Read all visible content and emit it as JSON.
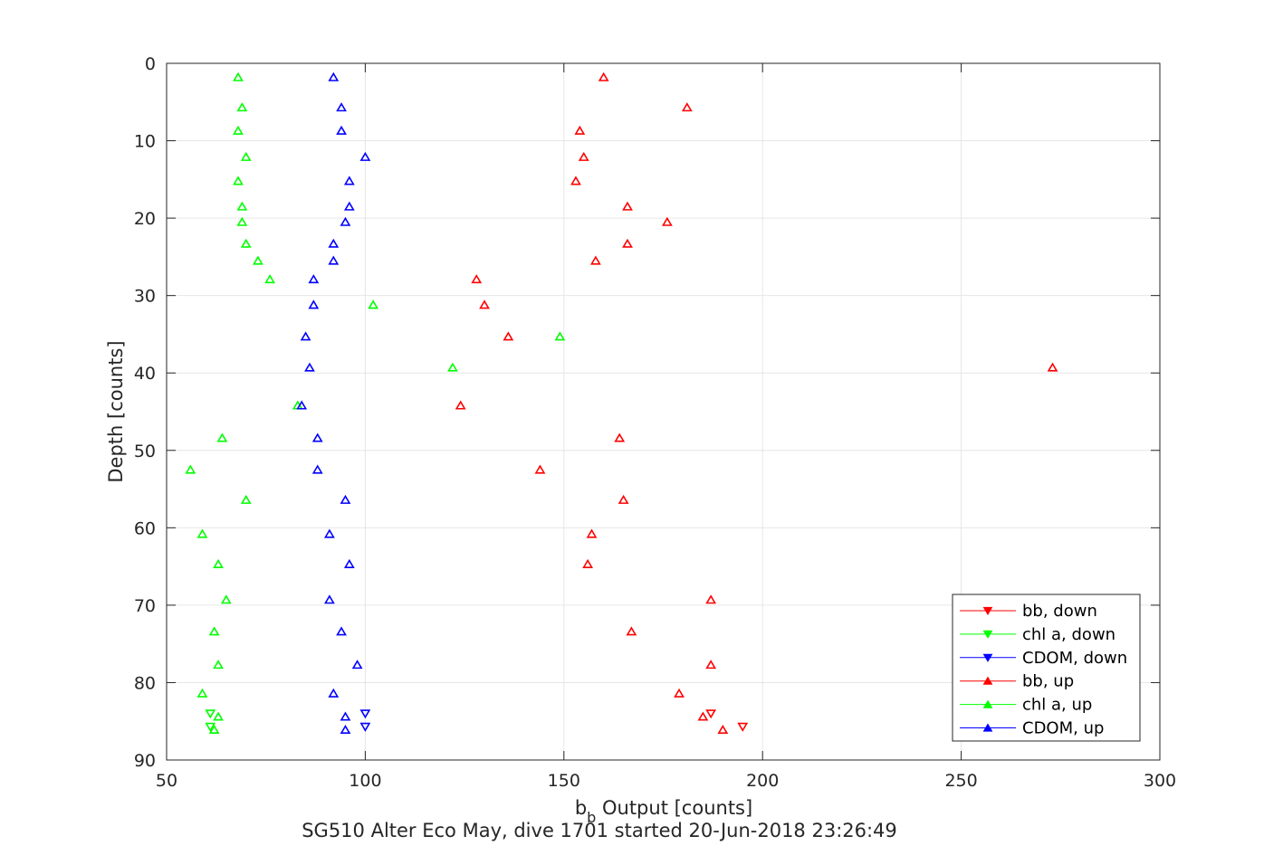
{
  "chart_data": {
    "type": "scatter",
    "title": "",
    "caption": "SG510 Alter Eco May, dive 1701 started 20-Jun-2018 23:26:49",
    "xlabel": {
      "main": "b",
      "sub": "b",
      "rest": " Output [counts]"
    },
    "ylabel": "Depth [counts]",
    "xlim": [
      50,
      300
    ],
    "ylim": [
      0,
      90
    ],
    "y_reversed": true,
    "grid": true,
    "legend_position": "bottom-right",
    "xticks": [
      "50",
      "100",
      "150",
      "200",
      "250",
      "300"
    ],
    "yticks": [
      "0",
      "10",
      "20",
      "30",
      "40",
      "50",
      "60",
      "70",
      "80",
      "90"
    ],
    "series": [
      {
        "name": "bb, down",
        "color": "#ff0000",
        "marker": "triangle-down",
        "points": [
          [
            187,
            84.0
          ],
          [
            195,
            85.7
          ]
        ]
      },
      {
        "name": "chl a, down",
        "color": "#00ff00",
        "marker": "triangle-down",
        "points": [
          [
            61,
            84.0
          ],
          [
            61,
            85.7
          ]
        ]
      },
      {
        "name": "CDOM, down",
        "color": "#0000ff",
        "marker": "triangle-down",
        "points": [
          [
            100,
            84.0
          ],
          [
            100,
            85.7
          ]
        ]
      },
      {
        "name": "bb, up",
        "color": "#ff0000",
        "marker": "triangle-up",
        "points": [
          [
            160,
            1.8
          ],
          [
            181,
            5.7
          ],
          [
            154,
            8.7
          ],
          [
            155,
            12.1
          ],
          [
            153,
            15.2
          ],
          [
            166,
            18.5
          ],
          [
            176,
            20.5
          ],
          [
            166,
            23.3
          ],
          [
            158,
            25.5
          ],
          [
            128,
            27.9
          ],
          [
            130,
            31.2
          ],
          [
            136,
            35.3
          ],
          [
            273,
            39.3
          ],
          [
            124,
            44.2
          ],
          [
            164,
            48.4
          ],
          [
            144,
            52.5
          ],
          [
            165,
            56.4
          ],
          [
            157,
            60.8
          ],
          [
            156,
            64.7
          ],
          [
            187,
            69.3
          ],
          [
            167,
            73.4
          ],
          [
            187,
            77.7
          ],
          [
            179,
            81.4
          ],
          [
            185,
            84.4
          ],
          [
            190,
            86.1
          ]
        ]
      },
      {
        "name": "chl a, up",
        "color": "#00ff00",
        "marker": "triangle-up",
        "points": [
          [
            68,
            1.8
          ],
          [
            69,
            5.7
          ],
          [
            68,
            8.7
          ],
          [
            70,
            12.1
          ],
          [
            68,
            15.2
          ],
          [
            69,
            18.5
          ],
          [
            69,
            20.5
          ],
          [
            70,
            23.3
          ],
          [
            73,
            25.5
          ],
          [
            76,
            27.9
          ],
          [
            102,
            31.2
          ],
          [
            149,
            35.3
          ],
          [
            122,
            39.3
          ],
          [
            83,
            44.2
          ],
          [
            64,
            48.4
          ],
          [
            56,
            52.5
          ],
          [
            70,
            56.4
          ],
          [
            59,
            60.8
          ],
          [
            63,
            64.7
          ],
          [
            65,
            69.3
          ],
          [
            62,
            73.4
          ],
          [
            63,
            77.7
          ],
          [
            59,
            81.4
          ],
          [
            63,
            84.4
          ],
          [
            62,
            86.1
          ]
        ]
      },
      {
        "name": "CDOM, up",
        "color": "#0000ff",
        "marker": "triangle-up",
        "points": [
          [
            92,
            1.8
          ],
          [
            94,
            5.7
          ],
          [
            94,
            8.7
          ],
          [
            100,
            12.1
          ],
          [
            96,
            15.2
          ],
          [
            96,
            18.5
          ],
          [
            95,
            20.5
          ],
          [
            92,
            23.3
          ],
          [
            92,
            25.5
          ],
          [
            87,
            27.9
          ],
          [
            87,
            31.2
          ],
          [
            85,
            35.3
          ],
          [
            86,
            39.3
          ],
          [
            84,
            44.2
          ],
          [
            88,
            48.4
          ],
          [
            88,
            52.5
          ],
          [
            95,
            56.4
          ],
          [
            91,
            60.8
          ],
          [
            96,
            64.7
          ],
          [
            91,
            69.3
          ],
          [
            94,
            73.4
          ],
          [
            98,
            77.7
          ],
          [
            92,
            81.4
          ],
          [
            95,
            84.4
          ],
          [
            95,
            86.1
          ]
        ]
      }
    ]
  }
}
